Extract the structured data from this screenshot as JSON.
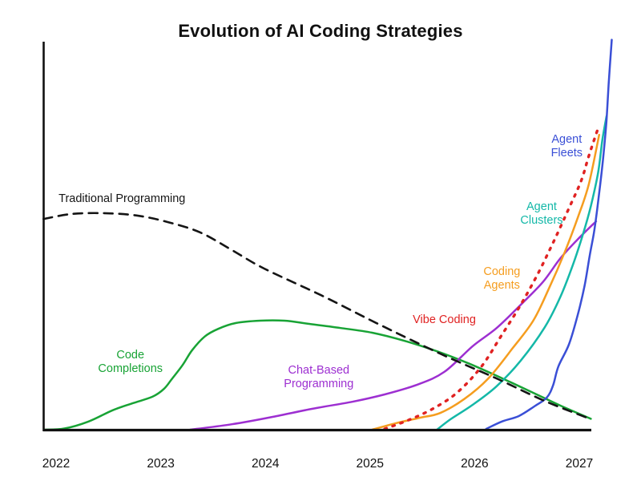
{
  "chart_data": {
    "type": "line",
    "title": "Evolution of AI Coding Strategies",
    "xlabel": "",
    "ylabel": "",
    "x_ticks": [
      {
        "label": "2022",
        "year": 2022
      },
      {
        "label": "2023",
        "year": 2023
      },
      {
        "label": "2024",
        "year": 2024
      },
      {
        "label": "2025",
        "year": 2025
      },
      {
        "label": "2026",
        "year": 2026
      },
      {
        "label": "2027",
        "year": 2027
      }
    ],
    "x_range": [
      2021.88,
      2027.32
    ],
    "y_range": [
      0,
      100
    ],
    "grid": false,
    "legend_position": "inline-curve-labels",
    "axis_color": "#111111",
    "y_axis_labeled": false,
    "series": [
      {
        "name": "Code Completions",
        "label_lines": [
          "Code",
          "Completions"
        ],
        "color": "#18A335",
        "style": "solid",
        "label_pos": {
          "year": 2022.71,
          "value": 17.8
        },
        "points": [
          [
            2021.89,
            0.0
          ],
          [
            2022.08,
            0.3
          ],
          [
            2022.31,
            2.1
          ],
          [
            2022.54,
            5.0
          ],
          [
            2022.73,
            6.8
          ],
          [
            2022.92,
            8.5
          ],
          [
            2023.03,
            10.5
          ],
          [
            2023.11,
            13.2
          ],
          [
            2023.21,
            16.7
          ],
          [
            2023.3,
            20.5
          ],
          [
            2023.42,
            24.0
          ],
          [
            2023.55,
            26.0
          ],
          [
            2023.72,
            27.5
          ],
          [
            2023.95,
            28.1
          ],
          [
            2024.18,
            28.1
          ],
          [
            2024.41,
            27.3
          ],
          [
            2024.72,
            26.2
          ],
          [
            2025.02,
            25.0
          ],
          [
            2025.33,
            22.9
          ],
          [
            2025.64,
            20.2
          ],
          [
            2025.94,
            17.1
          ],
          [
            2026.25,
            13.4
          ],
          [
            2026.56,
            9.5
          ],
          [
            2026.82,
            6.2
          ],
          [
            2027.11,
            2.8
          ]
        ]
      },
      {
        "name": "Chat-Based Programming",
        "label_lines": [
          "Chat-Based",
          "Programming"
        ],
        "color": "#9D2FD1",
        "style": "solid",
        "label_pos": {
          "year": 2024.51,
          "value": 13.8
        },
        "points": [
          [
            2023.28,
            0.0
          ],
          [
            2023.68,
            1.4
          ],
          [
            2024.07,
            3.3
          ],
          [
            2024.45,
            5.4
          ],
          [
            2024.83,
            7.2
          ],
          [
            2025.14,
            9.1
          ],
          [
            2025.45,
            11.6
          ],
          [
            2025.71,
            14.9
          ],
          [
            2025.98,
            21.5
          ],
          [
            2026.21,
            26.2
          ],
          [
            2026.44,
            32.2
          ],
          [
            2026.65,
            38.0
          ],
          [
            2026.82,
            44.2
          ],
          [
            2026.99,
            49.2
          ],
          [
            2027.16,
            53.7
          ]
        ]
      },
      {
        "name": "Coding Agents",
        "label_lines": [
          "Coding",
          "Agents"
        ],
        "color": "#F59D1F",
        "style": "solid",
        "label_pos": {
          "year": 2026.26,
          "value": 39.3
        },
        "points": [
          [
            2025.02,
            0.0
          ],
          [
            2025.25,
            1.7
          ],
          [
            2025.48,
            3.1
          ],
          [
            2025.67,
            4.3
          ],
          [
            2025.9,
            7.9
          ],
          [
            2026.13,
            13.2
          ],
          [
            2026.36,
            20.9
          ],
          [
            2026.56,
            28.1
          ],
          [
            2026.71,
            36.4
          ],
          [
            2026.86,
            45.7
          ],
          [
            2026.99,
            55.0
          ],
          [
            2027.09,
            63.2
          ],
          [
            2027.19,
            76.0
          ]
        ]
      },
      {
        "name": "Agent Clusters",
        "label_lines": [
          "Agent",
          "Clusters"
        ],
        "color": "#14B8A8",
        "style": "solid",
        "label_pos": {
          "year": 2026.64,
          "value": 56.0
        },
        "points": [
          [
            2025.64,
            0.0
          ],
          [
            2025.77,
            2.7
          ],
          [
            2025.98,
            6.4
          ],
          [
            2026.21,
            11.2
          ],
          [
            2026.44,
            17.8
          ],
          [
            2026.67,
            26.4
          ],
          [
            2026.82,
            34.3
          ],
          [
            2026.94,
            42.6
          ],
          [
            2027.04,
            50.8
          ],
          [
            2027.11,
            57.6
          ],
          [
            2027.18,
            66.3
          ],
          [
            2027.22,
            74.6
          ],
          [
            2027.26,
            80.8
          ]
        ]
      },
      {
        "name": "Agent Fleets",
        "label_lines": [
          "Agent",
          "Fleets"
        ],
        "color": "#3A4FD6",
        "style": "solid",
        "label_pos": {
          "year": 2026.88,
          "value": 73.3
        },
        "points": [
          [
            2026.11,
            0.2
          ],
          [
            2026.26,
            2.1
          ],
          [
            2026.42,
            3.5
          ],
          [
            2026.57,
            6.0
          ],
          [
            2026.69,
            8.3
          ],
          [
            2026.75,
            11.5
          ],
          [
            2026.8,
            16.3
          ],
          [
            2026.9,
            21.9
          ],
          [
            2026.98,
            29.1
          ],
          [
            2027.05,
            37.0
          ],
          [
            2027.1,
            45.0
          ],
          [
            2027.14,
            50.8
          ],
          [
            2027.17,
            56.6
          ],
          [
            2027.2,
            63.2
          ],
          [
            2027.23,
            70.5
          ],
          [
            2027.26,
            79.8
          ],
          [
            2027.28,
            89.0
          ],
          [
            2027.31,
            100.5
          ]
        ]
      },
      {
        "name": "Vibe Coding",
        "label_lines": [
          "Vibe Coding"
        ],
        "color": "#E02222",
        "style": "dotted",
        "label_pos": {
          "year": 2025.71,
          "value": 28.5
        },
        "points": [
          [
            2025.14,
            0.2
          ],
          [
            2025.37,
            2.5
          ],
          [
            2025.6,
            5.4
          ],
          [
            2025.83,
            9.5
          ],
          [
            2026.06,
            16.1
          ],
          [
            2026.25,
            24.0
          ],
          [
            2026.44,
            32.2
          ],
          [
            2026.61,
            40.5
          ],
          [
            2026.76,
            48.8
          ],
          [
            2026.9,
            57.0
          ],
          [
            2027.02,
            64.3
          ],
          [
            2027.09,
            70.5
          ],
          [
            2027.18,
            77.7
          ]
        ]
      },
      {
        "name": "Traditional Programming",
        "label_lines": [
          "Traditional Programming"
        ],
        "color": "#151515",
        "style": "dashed",
        "label_pos": {
          "year": 2022.63,
          "value": 59.7
        },
        "points": [
          [
            2021.88,
            54.3
          ],
          [
            2022.15,
            55.6
          ],
          [
            2022.46,
            55.8
          ],
          [
            2022.77,
            55.2
          ],
          [
            2023.07,
            53.5
          ],
          [
            2023.38,
            50.8
          ],
          [
            2023.68,
            46.3
          ],
          [
            2023.99,
            41.5
          ],
          [
            2024.53,
            34.7
          ],
          [
            2025.06,
            27.5
          ],
          [
            2025.67,
            19.6
          ],
          [
            2026.21,
            13.2
          ],
          [
            2026.67,
            7.4
          ],
          [
            2027.11,
            2.7
          ]
        ]
      }
    ]
  }
}
